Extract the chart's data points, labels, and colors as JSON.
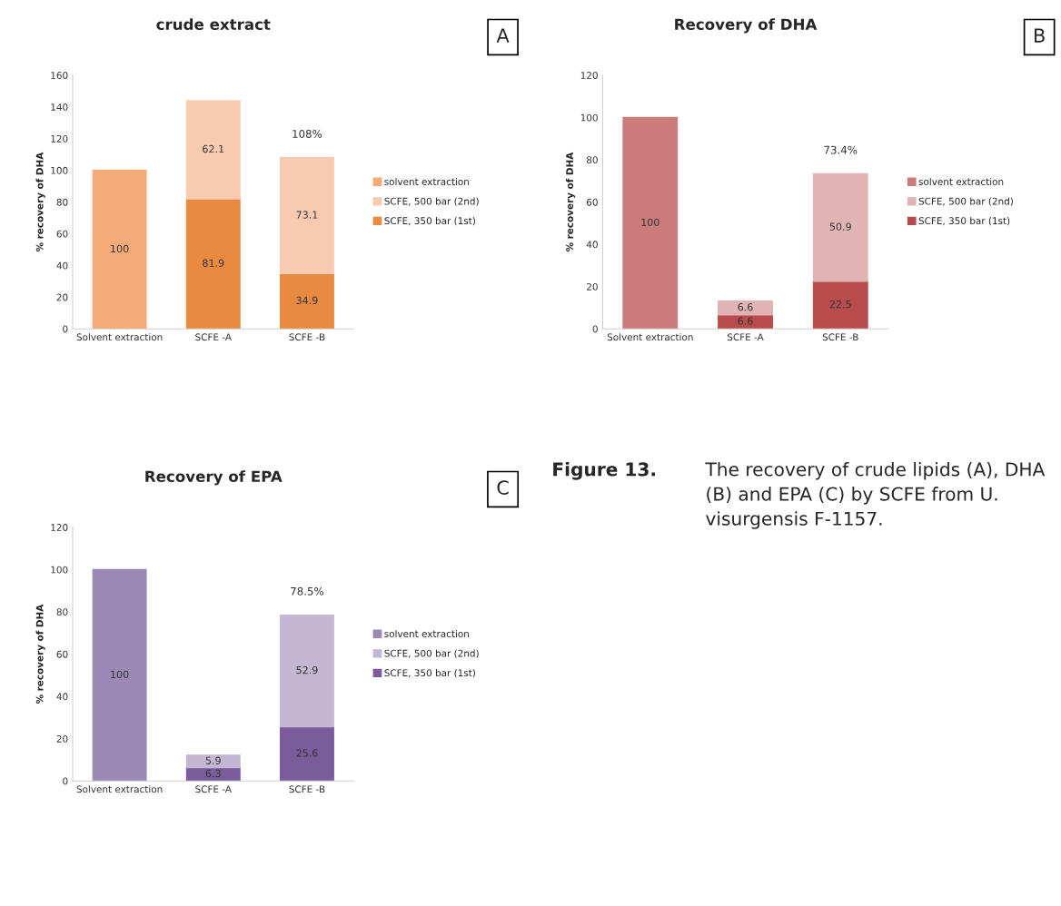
{
  "chart_data": [
    {
      "type": "bar",
      "title": "crude extract",
      "ylabel": "% recovery of DHA",
      "categories": [
        "Solvent extraction",
        "SCFE -A",
        "SCFE -B"
      ],
      "stacked": true,
      "ylim": [
        0,
        160
      ],
      "yticks": [
        0,
        20,
        40,
        60,
        80,
        100,
        120,
        140,
        160
      ],
      "grid": false,
      "legend": "right",
      "data_labels": true,
      "annotations": [
        "A"
      ],
      "series": [
        {
          "name": "SCFE, 350 bar (1st)",
          "color": "#e88b40",
          "values": [
            null,
            81.9,
            34.9
          ]
        },
        {
          "name": "SCFE, 500 bar (2nd)",
          "color": "#f8cbb0",
          "values": [
            null,
            62.1,
            73.1
          ]
        },
        {
          "name": "solvent extraction",
          "color": "#f5aa78",
          "values": [
            100,
            null,
            null
          ]
        }
      ],
      "totals": [
        null,
        null,
        "108%"
      ]
    },
    {
      "type": "bar",
      "title": "Recovery of DHA",
      "ylabel": "% recovery of DHA",
      "categories": [
        "Solvent extraction",
        "SCFE -A",
        "SCFE -B"
      ],
      "stacked": true,
      "ylim": [
        0,
        120
      ],
      "yticks": [
        0,
        20,
        40,
        60,
        80,
        100,
        120
      ],
      "grid": false,
      "legend": "right",
      "data_labels": true,
      "annotations": [
        "B"
      ],
      "series": [
        {
          "name": "SCFE, 350 bar (1st)",
          "color": "#b84c4c",
          "values": [
            null,
            6.6,
            22.5
          ]
        },
        {
          "name": "SCFE, 500 bar (2nd)",
          "color": "#e0b4b4",
          "values": [
            null,
            6.6,
            50.9
          ]
        },
        {
          "name": "solvent extraction",
          "color": "#cc7b7b",
          "values": [
            100,
            null,
            null
          ]
        }
      ],
      "totals": [
        null,
        null,
        "73.4%"
      ]
    },
    {
      "type": "bar",
      "title": "Recovery of EPA",
      "ylabel": "% recovery of DHA",
      "categories": [
        "Solvent extraction",
        "SCFE -A",
        "SCFE -B"
      ],
      "stacked": true,
      "ylim": [
        0,
        120
      ],
      "yticks": [
        0,
        20,
        40,
        60,
        80,
        100,
        120
      ],
      "grid": false,
      "legend": "right",
      "data_labels": true,
      "annotations": [
        "C"
      ],
      "series": [
        {
          "name": "SCFE, 350 bar (1st)",
          "color": "#7a5c9c",
          "values": [
            null,
            6.3,
            25.6
          ]
        },
        {
          "name": "SCFE, 500 bar (2nd)",
          "color": "#c4b7d3",
          "values": [
            null,
            5.9,
            52.9
          ]
        },
        {
          "name": "solvent extraction",
          "color": "#9b88b5",
          "values": [
            100,
            null,
            null
          ]
        }
      ],
      "totals": [
        null,
        null,
        "78.5%"
      ]
    },
    {
      "type": "other",
      "annotations": [
        "Figure 13.",
        "The recovery of crude lipids (A), DHA (B) and EPA (C) by SCFE from U. visurgensis F-1157."
      ]
    }
  ]
}
